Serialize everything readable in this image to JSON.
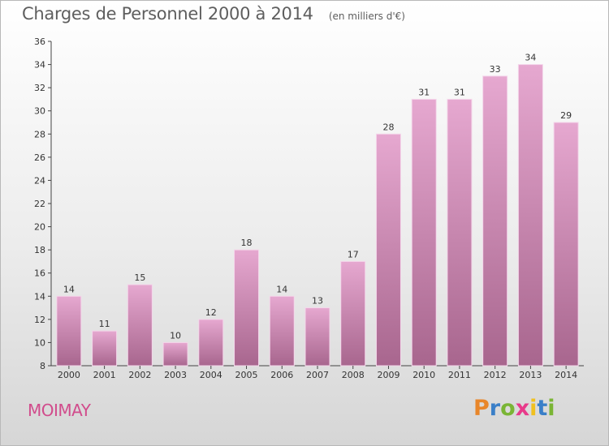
{
  "header": {
    "title": "Charges de Personnel 2000 à 2014",
    "unit": "(en milliers d'€)"
  },
  "footer": {
    "commune": "MOIMAY",
    "logo_letters": [
      "P",
      "r",
      "o",
      "x",
      "i",
      "t",
      "i"
    ],
    "logo_colors": [
      "#e8862a",
      "#3a7fc8",
      "#7ab535",
      "#e83a8a",
      "#f0c020",
      "#3a7fc8",
      "#7ab535"
    ]
  },
  "chart_data": {
    "type": "bar",
    "categories": [
      "2000",
      "2001",
      "2002",
      "2003",
      "2004",
      "2005",
      "2006",
      "2007",
      "2008",
      "2009",
      "2010",
      "2011",
      "2012",
      "2013",
      "2014"
    ],
    "values": [
      14,
      11,
      15,
      10,
      12,
      18,
      14,
      13,
      17,
      28,
      31,
      31,
      33,
      34,
      29
    ],
    "data_labels": [
      "14",
      "11",
      "15",
      "10",
      "12",
      "18",
      "14",
      "13",
      "17",
      "28",
      "31",
      "31",
      "33",
      "34",
      "29"
    ],
    "ylim": [
      8,
      36
    ],
    "yticks": [
      "8",
      "10",
      "12",
      "14",
      "16",
      "18",
      "20",
      "22",
      "24",
      "26",
      "28",
      "30",
      "32",
      "34",
      "36"
    ],
    "grid": false,
    "bar_color_top": "#e6a8d0",
    "bar_color_bottom": "#a8668e",
    "bar_edge_color": "#f4d6ea"
  }
}
